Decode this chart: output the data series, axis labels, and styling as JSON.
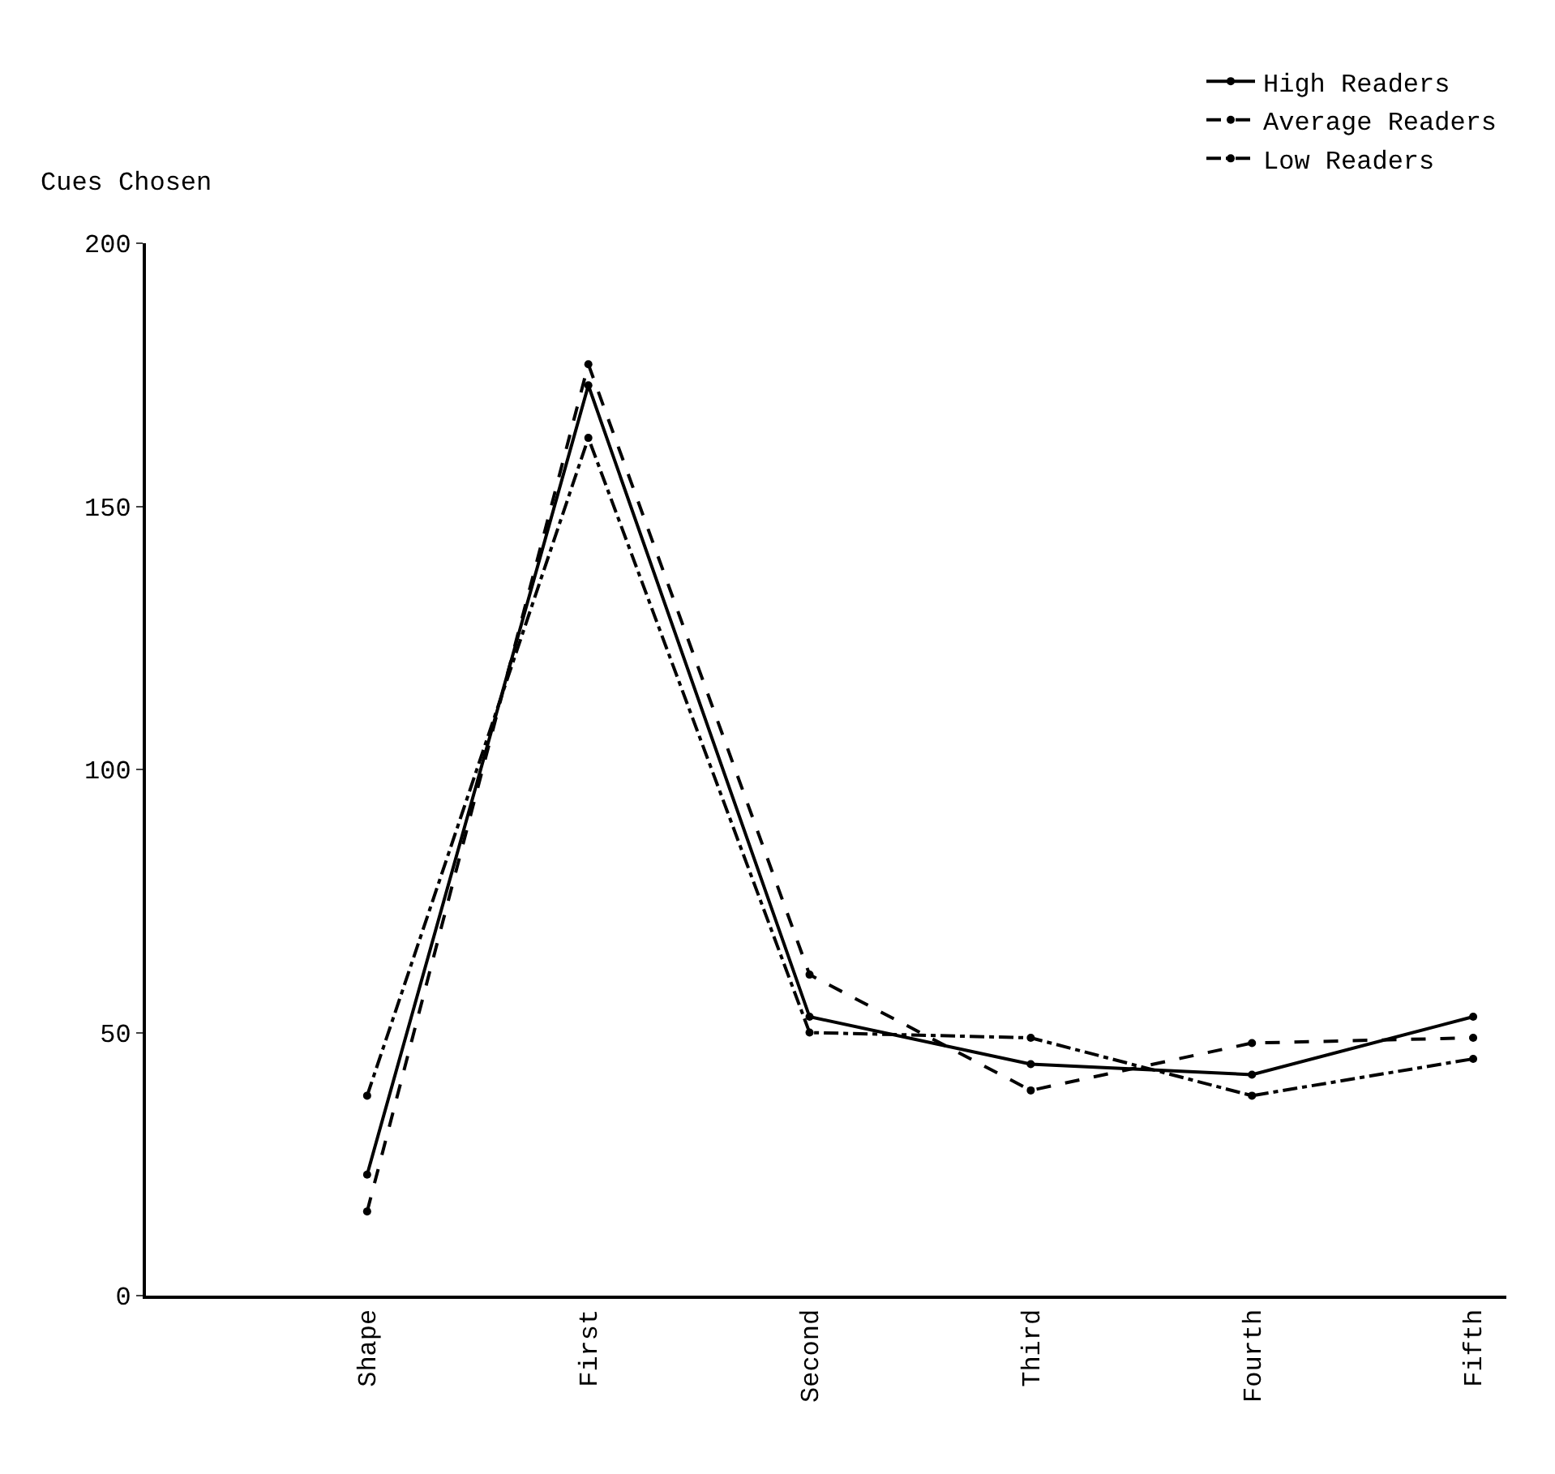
{
  "chart_data": {
    "type": "line",
    "ylabel": "Cues Chosen",
    "categories": [
      "Shape",
      "First",
      "Second",
      "Third",
      "Fourth",
      "Fifth"
    ],
    "series": [
      {
        "name": "High Readers",
        "color": "#000000",
        "line_style": "solid",
        "values": [
          23,
          173,
          53,
          44,
          42,
          53
        ]
      },
      {
        "name": "Average Readers",
        "color": "#000000",
        "line_style": "dashed",
        "values": [
          16,
          177,
          61,
          39,
          48,
          49
        ]
      },
      {
        "name": "Low Readers",
        "color": "#000000",
        "line_style": "dashdot",
        "values": [
          38,
          163,
          50,
          49,
          38,
          45
        ]
      }
    ],
    "ylim": [
      0,
      200
    ],
    "yticks": [
      0,
      50,
      100,
      150,
      200
    ],
    "legend": "top right",
    "marker": "circle"
  }
}
